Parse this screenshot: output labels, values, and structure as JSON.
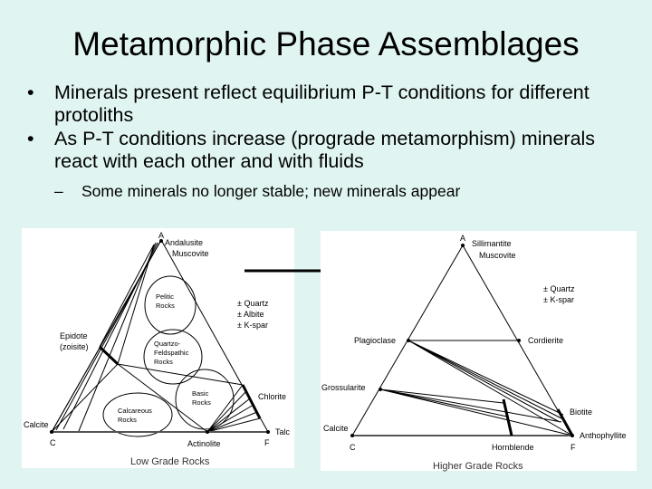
{
  "title": "Metamorphic Phase Assemblages",
  "bullets": [
    "Minerals present reflect equilibrium P-T conditions for different protoliths",
    "As P-T conditions increase (prograde metamorphism) minerals react with each other and with fluids"
  ],
  "sub_bullets": [
    "Some minerals no longer stable; new minerals appear"
  ],
  "low_grade": {
    "caption": "Low Grade Rocks",
    "apex_A": "A",
    "apex_C": "C",
    "apex_F": "F",
    "minerals": {
      "top1": "Andalusite",
      "top2": "Muscovite",
      "epidote1": "Epidote",
      "epidote2": "(zoisite)",
      "calcite": "Calcite",
      "actinolite": "Actinolite",
      "talc": "Talc",
      "chlorite": "Chlorite"
    },
    "extras": [
      "± Quartz",
      "± Albite",
      "± K-spar"
    ],
    "fields": {
      "pelitic": [
        "Pelitic",
        "Rocks"
      ],
      "quartzo": [
        "Quartzo-",
        "Feldspathic",
        "Rocks"
      ],
      "basic": [
        "Basic",
        "Rocks"
      ],
      "calcareous": [
        "Calcareous",
        "Rocks"
      ]
    }
  },
  "high_grade": {
    "caption": "Higher Grade Rocks",
    "apex_A": "A",
    "apex_C": "C",
    "apex_F": "F",
    "minerals": {
      "top1": "Sillimantite",
      "top2": "Muscovite",
      "plagioclase": "Plagioclase",
      "cordierite": "Cordierite",
      "grossularite": "Grossularite",
      "calcite": "Calcite",
      "hornblende": "Hornblende",
      "biotite": "Biotite",
      "anthophyllite": "Anthophyllite"
    },
    "extras": [
      "± Quartz",
      "± K-spar"
    ]
  }
}
